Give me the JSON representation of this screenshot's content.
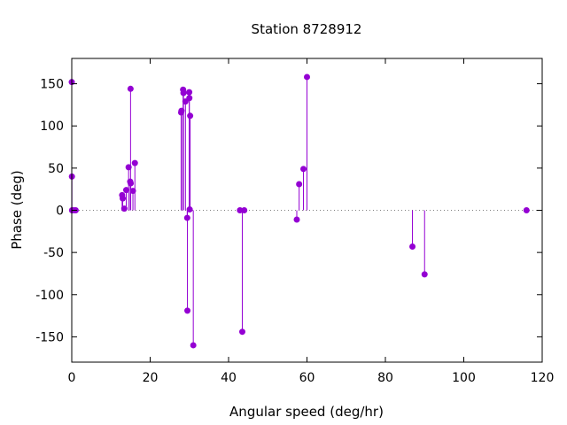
{
  "chart_data": {
    "type": "scatter",
    "style": "impulses-with-points",
    "title": "Station 8728912",
    "xlabel": "Angular speed (deg/hr)",
    "ylabel": "Phase (deg)",
    "xlim": [
      0,
      120
    ],
    "ylim": [
      -180,
      180
    ],
    "xticks": [
      0,
      20,
      40,
      60,
      80,
      100,
      120
    ],
    "yticks": [
      -150,
      -100,
      -50,
      0,
      50,
      100,
      150
    ],
    "zero_line": true,
    "grid": false,
    "legend": "none",
    "series": [
      {
        "color": "#9400d3",
        "points": [
          {
            "x": 0.0,
            "y": 152
          },
          {
            "x": 0.04,
            "y": 40
          },
          {
            "x": 0.08,
            "y": 0
          },
          {
            "x": 0.5,
            "y": 0
          },
          {
            "x": 1.0,
            "y": 0
          },
          {
            "x": 12.85,
            "y": 18
          },
          {
            "x": 13.0,
            "y": 14
          },
          {
            "x": 13.4,
            "y": 2
          },
          {
            "x": 13.9,
            "y": 24
          },
          {
            "x": 14.5,
            "y": 51
          },
          {
            "x": 14.9,
            "y": 34
          },
          {
            "x": 15.0,
            "y": 144
          },
          {
            "x": 15.04,
            "y": 32
          },
          {
            "x": 15.6,
            "y": 23
          },
          {
            "x": 16.1,
            "y": 56
          },
          {
            "x": 27.9,
            "y": 116
          },
          {
            "x": 28.0,
            "y": 118
          },
          {
            "x": 28.4,
            "y": 143
          },
          {
            "x": 28.5,
            "y": 139
          },
          {
            "x": 29.0,
            "y": 129
          },
          {
            "x": 29.45,
            "y": -9
          },
          {
            "x": 29.5,
            "y": -119
          },
          {
            "x": 29.96,
            "y": 140
          },
          {
            "x": 30.0,
            "y": 133
          },
          {
            "x": 30.08,
            "y": 1
          },
          {
            "x": 30.2,
            "y": 112
          },
          {
            "x": 31.0,
            "y": -160
          },
          {
            "x": 42.9,
            "y": 0
          },
          {
            "x": 43.5,
            "y": -144
          },
          {
            "x": 44.0,
            "y": 0
          },
          {
            "x": 57.4,
            "y": -11
          },
          {
            "x": 58.0,
            "y": 31
          },
          {
            "x": 59.1,
            "y": 49
          },
          {
            "x": 60.0,
            "y": 158
          },
          {
            "x": 86.9,
            "y": -43
          },
          {
            "x": 90.0,
            "y": -76
          },
          {
            "x": 116.0,
            "y": 0
          }
        ]
      }
    ]
  }
}
